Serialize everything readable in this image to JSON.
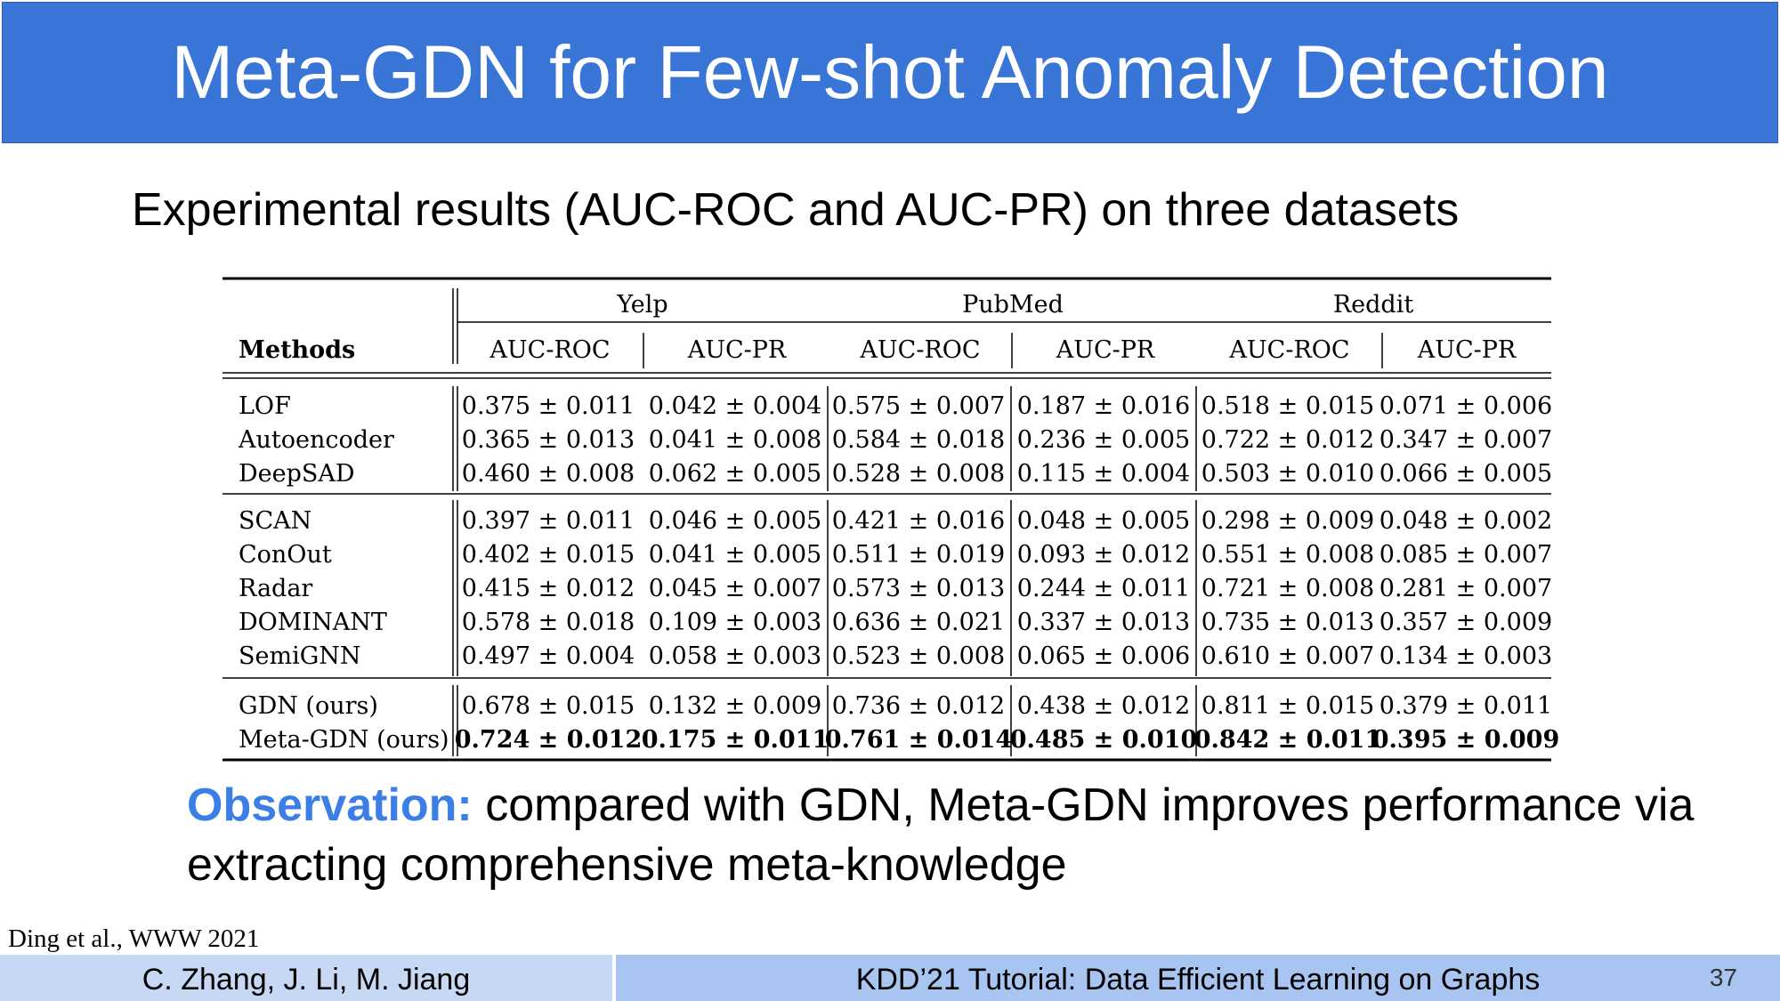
{
  "slide": {
    "title": "Meta-GDN for Few-shot Anomaly Detection",
    "subtitle": "Experimental results (AUC-ROC and AUC-PR) on three datasets",
    "observation_label": "Observation:",
    "observation_text": "compared with GDN, Meta-GDN improves performance via extracting comprehensive meta-knowledge",
    "citation": "Ding et al., WWW 2021",
    "footer_authors": "C. Zhang, J. Li, M. Jiang",
    "footer_tutorial": "KDD’21 Tutorial: Data Efficient Learning on Graphs",
    "page_number": "37",
    "colors": {
      "title_bar": "#3875d7",
      "observation_label": "#3a7ee6",
      "footer_left": "#c7d8f4",
      "footer_right": "#a8c4f0"
    }
  },
  "table": {
    "methods_header": "Methods",
    "datasets": [
      "Yelp",
      "PubMed",
      "Reddit"
    ],
    "metrics": [
      "AUC-ROC",
      "AUC-PR",
      "AUC-ROC",
      "AUC-PR",
      "AUC-ROC",
      "AUC-PR"
    ],
    "groups": [
      [
        {
          "method": "LOF",
          "bold": false,
          "values": [
            "0.375 ± 0.011",
            "0.042 ± 0.004",
            "0.575 ± 0.007",
            "0.187 ± 0.016",
            "0.518 ± 0.015",
            "0.071 ± 0.006"
          ]
        },
        {
          "method": "Autoencoder",
          "bold": false,
          "values": [
            "0.365 ± 0.013",
            "0.041 ± 0.008",
            "0.584 ± 0.018",
            "0.236 ± 0.005",
            "0.722 ± 0.012",
            "0.347 ± 0.007"
          ]
        },
        {
          "method": "DeepSAD",
          "bold": false,
          "values": [
            "0.460 ± 0.008",
            "0.062 ± 0.005",
            "0.528 ± 0.008",
            "0.115 ± 0.004",
            "0.503 ± 0.010",
            "0.066 ± 0.005"
          ]
        }
      ],
      [
        {
          "method": "SCAN",
          "bold": false,
          "values": [
            "0.397 ± 0.011",
            "0.046 ± 0.005",
            "0.421 ± 0.016",
            "0.048 ± 0.005",
            "0.298 ± 0.009",
            "0.048 ± 0.002"
          ]
        },
        {
          "method": "ConOut",
          "bold": false,
          "values": [
            "0.402 ± 0.015",
            "0.041 ± 0.005",
            "0.511 ± 0.019",
            "0.093 ± 0.012",
            "0.551 ± 0.008",
            "0.085 ± 0.007"
          ]
        },
        {
          "method": "Radar",
          "bold": false,
          "values": [
            "0.415 ± 0.012",
            "0.045 ± 0.007",
            "0.573 ± 0.013",
            "0.244 ± 0.011",
            "0.721 ± 0.008",
            "0.281 ± 0.007"
          ]
        },
        {
          "method": "DOMINANT",
          "bold": false,
          "values": [
            "0.578 ± 0.018",
            "0.109 ± 0.003",
            "0.636 ± 0.021",
            "0.337 ± 0.013",
            "0.735 ± 0.013",
            "0.357 ± 0.009"
          ]
        },
        {
          "method": "SemiGNN",
          "bold": false,
          "values": [
            "0.497 ± 0.004",
            "0.058 ± 0.003",
            "0.523 ± 0.008",
            "0.065 ± 0.006",
            "0.610 ± 0.007",
            "0.134 ± 0.003"
          ]
        }
      ],
      [
        {
          "method": "GDN (ours)",
          "bold": false,
          "values": [
            "0.678 ± 0.015",
            "0.132 ± 0.009",
            "0.736 ± 0.012",
            "0.438 ± 0.012",
            "0.811 ± 0.015",
            "0.379 ± 0.011"
          ]
        },
        {
          "method": "Meta-GDN (ours)",
          "bold": true,
          "values": [
            "0.724 ± 0.012",
            "0.175 ± 0.011",
            "0.761 ± 0.014",
            "0.485 ± 0.010",
            "0.842 ± 0.011",
            "0.395 ± 0.009"
          ]
        }
      ]
    ]
  }
}
